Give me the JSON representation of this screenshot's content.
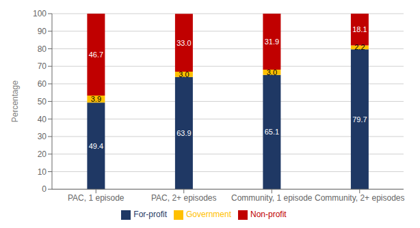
{
  "chart_data": {
    "type": "bar",
    "stacked": true,
    "data_labels": true,
    "ylabel": "Percentage",
    "categories": [
      "PAC, 1 episode",
      "PAC, 2+ episodes",
      "Community, 1 episode",
      "Community, 2+ episodes"
    ],
    "series": [
      {
        "name": "For-profit",
        "color": "#1F3864",
        "values": [
          49.4,
          63.9,
          65.1,
          79.7
        ],
        "value_labels": [
          "49.4",
          "63.9",
          "65.1",
          "79.7"
        ]
      },
      {
        "name": "Government",
        "color": "#FFC000",
        "values": [
          3.9,
          3.0,
          3.0,
          2.2
        ],
        "value_labels": [
          "3.9",
          "3.0",
          "3.0",
          "2.2"
        ]
      },
      {
        "name": "Non-profit",
        "color": "#C00000",
        "values": [
          46.7,
          33.0,
          31.9,
          18.1
        ],
        "value_labels": [
          "46.7",
          "33.0",
          "31.9",
          "18.1"
        ]
      }
    ],
    "ylim": [
      0,
      100
    ],
    "yticks": [
      0,
      10,
      20,
      30,
      40,
      50,
      60,
      70,
      80,
      90,
      100
    ],
    "grid": true,
    "legend": "bottom"
  }
}
